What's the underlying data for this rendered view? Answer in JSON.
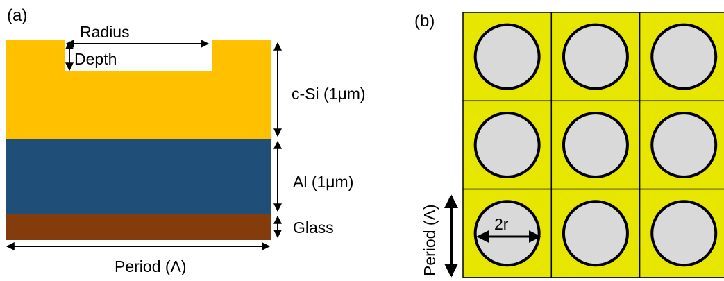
{
  "panel_a": {
    "label": "(a)",
    "annotations": {
      "radius": "Radius",
      "depth": "Depth",
      "period": "Period (Λ)"
    },
    "layers": [
      {
        "name": "c-Si (1μm)",
        "color": "#FFC000"
      },
      {
        "name": "Al (1μm)",
        "color": "#1F4E79"
      },
      {
        "name": "Glass",
        "color": "#843C0C"
      }
    ]
  },
  "panel_b": {
    "label": "(b)",
    "grid_rows": 3,
    "grid_cols": 3,
    "cell_color": "#E6E600",
    "hole_color": "#D9D9D9",
    "hole_outline_color": "#000000",
    "annotations": {
      "diameter": "2r",
      "period": "Period (Λ)"
    }
  }
}
